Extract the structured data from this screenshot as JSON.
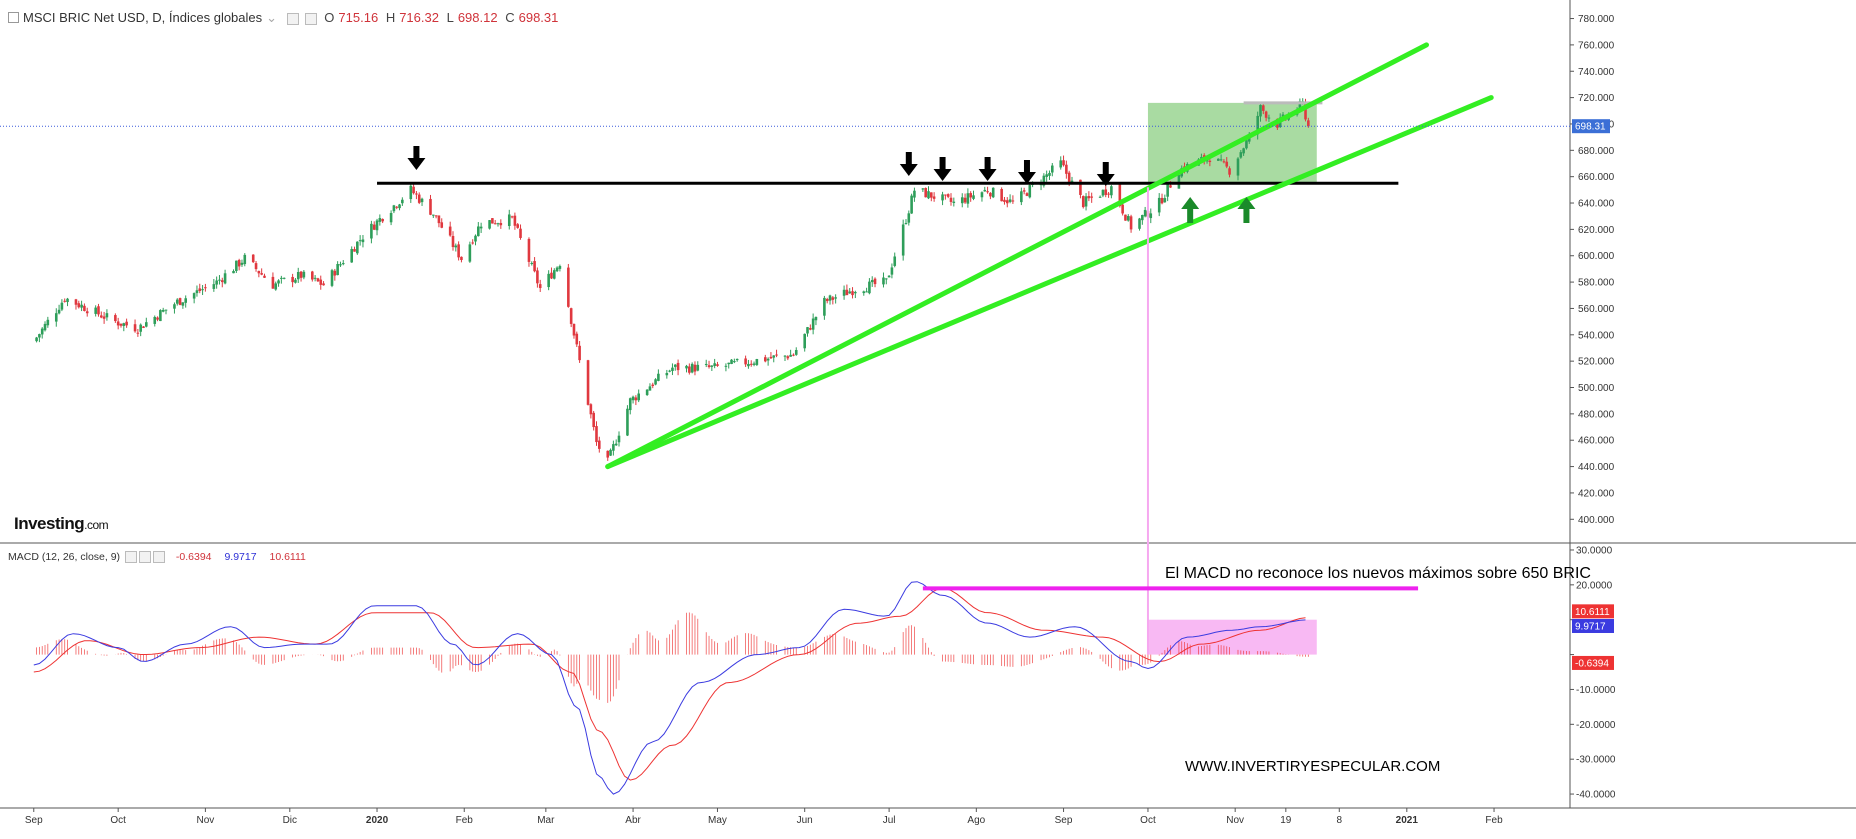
{
  "header": {
    "symbol_title": "MSCI BRIC Net USD, D, Índices globales",
    "open_label": "O",
    "open_value": "715.16",
    "high_label": "H",
    "high_value": "716.32",
    "low_label": "L",
    "low_value": "698.12",
    "close_label": "C",
    "close_value": "698.31"
  },
  "macd_header": {
    "title": "MACD (12, 26, close, 9)",
    "hist_value": "-0.6394",
    "macd_value": "9.9717",
    "signal_value": "10.6111"
  },
  "logo": {
    "name": "Investing",
    "suffix": ".com"
  },
  "annotations": {
    "macd_note": "El MACD no reconoce los nuevos máximos sobre 650 BRIC",
    "website": "WWW.INVERTIRYESPECULAR.COM"
  },
  "colors": {
    "up": "#2e9e5a",
    "down": "#e0383f",
    "trendline": "#33ee22",
    "resistance": "#000000",
    "zone_green": "#8ccf83",
    "zone_pink": "#f6a8f0",
    "macd_line": "#3b3be0",
    "signal_line": "#ee3333",
    "highlight_line": "#ee22ee",
    "arrow_down": "#000000",
    "arrow_up": "#1a8a2a"
  },
  "chart_data": [
    {
      "type": "candlestick",
      "title": "MSCI BRIC Net USD, D, Índices globales",
      "x_ticks": [
        "Sep",
        "Oct",
        "Nov",
        "Dic",
        "2020",
        "Feb",
        "Mar",
        "Abr",
        "May",
        "Jun",
        "Jul",
        "Ago",
        "Sep",
        "Oct",
        "Nov",
        "19",
        "8",
        "2021",
        "Feb"
      ],
      "y_ticks": [
        400,
        420,
        440,
        460,
        480,
        500,
        520,
        540,
        560,
        580,
        600,
        620,
        640,
        660,
        680,
        700,
        720,
        740,
        760,
        780
      ],
      "y_tick_labels": [
        "400.000",
        "420.000",
        "440.000",
        "460.000",
        "480.000",
        "500.000",
        "520.000",
        "540.000",
        "560.000",
        "580.000",
        "600.000",
        "620.000",
        "640.000",
        "660.000",
        "680.000",
        "700.000",
        "720.000",
        "740.000",
        "760.000",
        "780.000"
      ],
      "ylim": [
        382,
        788
      ],
      "last_price_label": "698.31",
      "last_price": 698.31,
      "close_series_approx": [
        [
          "2019-09-01",
          535
        ],
        [
          "2019-09-12",
          568
        ],
        [
          "2019-09-30",
          550
        ],
        [
          "2019-10-08",
          545
        ],
        [
          "2019-10-22",
          565
        ],
        [
          "2019-11-05",
          580
        ],
        [
          "2019-11-15",
          598
        ],
        [
          "2019-11-25",
          578
        ],
        [
          "2019-12-05",
          585
        ],
        [
          "2019-12-13",
          578
        ],
        [
          "2019-12-27",
          615
        ],
        [
          "2020-01-03",
          630
        ],
        [
          "2020-01-13",
          650
        ],
        [
          "2020-01-21",
          632
        ],
        [
          "2020-01-31",
          598
        ],
        [
          "2020-02-07",
          625
        ],
        [
          "2020-02-18",
          628
        ],
        [
          "2020-02-28",
          575
        ],
        [
          "2020-03-06",
          595
        ],
        [
          "2020-03-12",
          530
        ],
        [
          "2020-03-19",
          458
        ],
        [
          "2020-03-23",
          443
        ],
        [
          "2020-03-31",
          490
        ],
        [
          "2020-04-15",
          515
        ],
        [
          "2020-04-30",
          515
        ],
        [
          "2020-05-13",
          520
        ],
        [
          "2020-05-28",
          525
        ],
        [
          "2020-06-08",
          565
        ],
        [
          "2020-06-19",
          575
        ],
        [
          "2020-06-30",
          580
        ],
        [
          "2020-07-08",
          635
        ],
        [
          "2020-07-10",
          650
        ],
        [
          "2020-07-24",
          640
        ],
        [
          "2020-08-05",
          650
        ],
        [
          "2020-08-14",
          640
        ],
        [
          "2020-08-31",
          670
        ],
        [
          "2020-09-08",
          640
        ],
        [
          "2020-09-18",
          652
        ],
        [
          "2020-09-25",
          622
        ],
        [
          "2020-10-05",
          640
        ],
        [
          "2020-10-12",
          665
        ],
        [
          "2020-10-23",
          675
        ],
        [
          "2020-10-30",
          665
        ],
        [
          "2020-11-06",
          690
        ],
        [
          "2020-11-10",
          712
        ],
        [
          "2020-11-16",
          700
        ],
        [
          "2020-11-25",
          715
        ],
        [
          "2020-11-27",
          698
        ]
      ],
      "annotations": {
        "resistance_level": 655,
        "trendline_1": {
          "from": [
            "2020-03-23",
            440
          ],
          "to": [
            "2021-01-08",
            760
          ]
        },
        "trendline_2": {
          "from": [
            "2020-03-23",
            440
          ],
          "to": [
            "2021-01-31",
            720
          ]
        },
        "recent_high_level": 716,
        "down_arrows": [
          "2020-01-15",
          "2020-07-08",
          "2020-07-20",
          "2020-08-05",
          "2020-08-19",
          "2020-09-16"
        ],
        "up_arrows": [
          "2020-10-16",
          "2020-11-05"
        ],
        "green_zone": {
          "x": [
            "2020-10-01",
            "2020-11-30"
          ],
          "y": [
            655,
            716
          ]
        }
      }
    },
    {
      "type": "line",
      "title": "MACD (12, 26, close, 9)",
      "y_ticks": [
        -40,
        -30,
        -20,
        -10,
        0,
        10,
        20,
        30
      ],
      "y_tick_labels": [
        "-40.0000",
        "-30.0000",
        "-20.0000",
        "-10.0000",
        "",
        "",
        "20.0000",
        "30.0000"
      ],
      "ylim": [
        -44,
        32
      ],
      "price_labels": [
        {
          "text": "10.6111",
          "value": 10.6111,
          "color": "#ee3333"
        },
        {
          "text": "9.9717",
          "value": 9.9717,
          "color": "#3b3be0"
        },
        {
          "text": "-0.6394",
          "value": -0.6394,
          "color": "#ee3333"
        }
      ],
      "series": [
        {
          "name": "MACD",
          "values": [
            [
              "2019-09-01",
              -3
            ],
            [
              "2019-09-15",
              6
            ],
            [
              "2019-10-01",
              2
            ],
            [
              "2019-10-10",
              -2
            ],
            [
              "2019-10-25",
              3
            ],
            [
              "2019-11-10",
              8
            ],
            [
              "2019-11-22",
              2
            ],
            [
              "2019-12-05",
              3
            ],
            [
              "2019-12-15",
              3
            ],
            [
              "2019-12-31",
              14
            ],
            [
              "2020-01-15",
              14
            ],
            [
              "2020-01-28",
              3
            ],
            [
              "2020-02-05",
              -3
            ],
            [
              "2020-02-20",
              6
            ],
            [
              "2020-03-03",
              0
            ],
            [
              "2020-03-12",
              -15
            ],
            [
              "2020-03-20",
              -35
            ],
            [
              "2020-03-25",
              -40
            ],
            [
              "2020-04-08",
              -25
            ],
            [
              "2020-04-25",
              -8
            ],
            [
              "2020-05-15",
              0
            ],
            [
              "2020-05-30",
              2
            ],
            [
              "2020-06-15",
              13
            ],
            [
              "2020-06-30",
              11
            ],
            [
              "2020-07-10",
              21
            ],
            [
              "2020-07-20",
              17
            ],
            [
              "2020-08-05",
              9
            ],
            [
              "2020-08-20",
              5
            ],
            [
              "2020-09-05",
              8
            ],
            [
              "2020-09-25",
              -2
            ],
            [
              "2020-10-01",
              -4
            ],
            [
              "2020-10-15",
              5
            ],
            [
              "2020-10-31",
              7
            ],
            [
              "2020-11-10",
              8
            ],
            [
              "2020-11-27",
              9.97
            ]
          ]
        },
        {
          "name": "Signal",
          "values": [
            [
              "2019-09-01",
              -5
            ],
            [
              "2019-09-20",
              4
            ],
            [
              "2019-10-10",
              0
            ],
            [
              "2019-10-30",
              2
            ],
            [
              "2019-11-20",
              5
            ],
            [
              "2019-12-10",
              3
            ],
            [
              "2019-12-31",
              12
            ],
            [
              "2020-01-20",
              12
            ],
            [
              "2020-02-05",
              2
            ],
            [
              "2020-02-25",
              3
            ],
            [
              "2020-03-10",
              -5
            ],
            [
              "2020-03-20",
              -22
            ],
            [
              "2020-03-31",
              -36
            ],
            [
              "2020-04-15",
              -26
            ],
            [
              "2020-05-05",
              -8
            ],
            [
              "2020-05-30",
              0
            ],
            [
              "2020-06-20",
              9
            ],
            [
              "2020-07-05",
              11
            ],
            [
              "2020-07-20",
              19
            ],
            [
              "2020-08-05",
              12
            ],
            [
              "2020-08-25",
              7
            ],
            [
              "2020-09-15",
              5
            ],
            [
              "2020-10-05",
              -2
            ],
            [
              "2020-10-20",
              3
            ],
            [
              "2020-11-10",
              7
            ],
            [
              "2020-11-27",
              10.61
            ]
          ]
        },
        {
          "name": "Histogram",
          "values": [
            [
              "2019-09-10",
              2
            ],
            [
              "2019-10-10",
              -2
            ],
            [
              "2019-11-10",
              3
            ],
            [
              "2019-12-05",
              -1
            ],
            [
              "2020-01-03",
              2
            ],
            [
              "2020-02-05",
              -3
            ],
            [
              "2020-03-15",
              -12
            ],
            [
              "2020-04-10",
              8
            ],
            [
              "2020-04-20",
              10
            ],
            [
              "2020-05-15",
              5
            ],
            [
              "2020-06-10",
              4
            ],
            [
              "2020-07-10",
              5
            ],
            [
              "2020-08-10",
              -4
            ],
            [
              "2020-09-20",
              -6
            ],
            [
              "2020-10-20",
              4
            ],
            [
              "2020-11-27",
              -0.64
            ]
          ]
        }
      ],
      "annotations": {
        "horizontal_line_value": 19,
        "pink_zone": {
          "x": [
            "2020-10-01",
            "2020-11-30"
          ],
          "y": [
            0,
            10
          ]
        },
        "vertical_line_date": "2020-10-01"
      }
    }
  ]
}
